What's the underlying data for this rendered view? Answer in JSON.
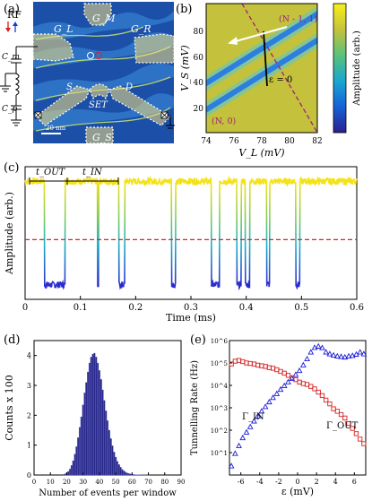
{
  "panels": {
    "a": {
      "label": "(a)",
      "rf_label": "RF",
      "cm_label": "C_m",
      "cp_label": "C_p",
      "gates": [
        "G_L",
        "G_M",
        "G_R",
        "S",
        "SET",
        "D",
        "G_S"
      ],
      "scale_bar": "20 nm",
      "colors": {
        "bg": "#1b4fa8",
        "terrace": "#2f7fd4",
        "highlight": "#d8ec6a",
        "gate": "#f4e486"
      }
    },
    "b": {
      "label": "(b)",
      "xlabel": "V_L (mV)",
      "ylabel": "V_S (mV)",
      "colorbar_label": "Amplitude (arb.)",
      "annot_upper": "(N - 1, 1)",
      "annot_lower": "(N, 0)",
      "annot_eps": "ε = 0",
      "xticks": [
        "74",
        "76",
        "78",
        "80",
        "82"
      ],
      "yticks": [
        "20",
        "40",
        "60",
        "80"
      ]
    },
    "c": {
      "label": "(c)"
    },
    "d": {
      "label": "(d)"
    },
    "e": {
      "label": "(e)"
    }
  },
  "chart_data": [
    {
      "id": "b",
      "type": "heatmap",
      "xlabel": "V_L (mV)",
      "ylabel": "V_S (mV)",
      "xlim": [
        74,
        82
      ],
      "ylim": [
        0,
        100
      ],
      "xticks": [
        74,
        76,
        78,
        80,
        82
      ],
      "yticks": [
        20,
        40,
        60,
        80
      ],
      "colorbar_label": "Amplitude (arb.)",
      "colormap": "parula",
      "annotations": [
        "(N - 1, 1)",
        "(N, 0)",
        "ε = 0"
      ],
      "transition_line": {
        "v_l": [
          77.2,
          80.2
        ],
        "v_s": [
          100,
          0
        ]
      },
      "detuning_axis": {
        "v_l": [
          76.5,
          78.0
        ],
        "v_s": [
          67.5,
          28.0
        ]
      }
    },
    {
      "id": "c",
      "type": "line",
      "xlabel": "Time (ms)",
      "ylabel": "Amplitude (arb.)",
      "xlim": [
        0,
        0.6
      ],
      "ylim": [
        0,
        1
      ],
      "xticks": [
        0,
        0.1,
        0.2,
        0.3,
        0.4,
        0.5,
        0.6
      ],
      "annotations": [
        "t_OUT",
        "t_IN"
      ],
      "high_level": 0.89,
      "low_level": 0.11,
      "threshold": 0.45,
      "low_intervals_ms": [
        [
          0.035,
          0.072
        ],
        [
          0.131,
          0.133
        ],
        [
          0.17,
          0.18
        ],
        [
          0.265,
          0.272
        ],
        [
          0.337,
          0.352
        ],
        [
          0.383,
          0.391
        ],
        [
          0.398,
          0.406
        ],
        [
          0.437,
          0.442
        ],
        [
          0.49,
          0.497
        ]
      ]
    },
    {
      "id": "d",
      "type": "bar",
      "xlabel": "Number of events per window",
      "ylabel": "Counts x 100",
      "xlim": [
        0,
        90
      ],
      "ylim": [
        0,
        4.5
      ],
      "xticks": [
        0,
        10,
        20,
        30,
        40,
        50,
        60,
        70,
        80,
        90
      ],
      "yticks": [
        0,
        1,
        2,
        3,
        4
      ],
      "bin_centers": [
        18,
        19,
        20,
        21,
        22,
        23,
        24,
        25,
        26,
        27,
        28,
        29,
        30,
        31,
        32,
        33,
        34,
        35,
        36,
        37,
        38,
        39,
        40,
        41,
        42,
        43,
        44,
        45,
        46,
        47,
        48,
        49,
        50,
        51,
        52,
        53,
        54,
        55,
        56,
        57,
        58,
        59,
        60,
        61,
        62,
        63,
        64,
        65,
        66,
        67,
        68,
        69,
        70
      ],
      "values": [
        0.02,
        0.04,
        0.07,
        0.12,
        0.2,
        0.32,
        0.48,
        0.7,
        0.95,
        1.25,
        1.6,
        1.95,
        2.35,
        2.75,
        3.1,
        3.45,
        3.75,
        3.95,
        4.05,
        4.08,
        3.95,
        3.75,
        3.5,
        3.2,
        2.85,
        2.5,
        2.15,
        1.82,
        1.5,
        1.22,
        0.98,
        0.77,
        0.6,
        0.46,
        0.35,
        0.26,
        0.19,
        0.14,
        0.1,
        0.07,
        0.05,
        0.035,
        0.025,
        0.018,
        0.012,
        0.008,
        0.006,
        0.004,
        0.003,
        0.002,
        0.0015,
        0.001,
        0.001
      ]
    },
    {
      "id": "e",
      "type": "scatter",
      "xlabel": "ε (mV)",
      "ylabel": "Tunnelling Rate (Hz)",
      "xlim": [
        -7.2,
        7.2
      ],
      "ylim": [
        1,
        1000000
      ],
      "yscale": "log",
      "xticks": [
        -6,
        -4,
        -2,
        0,
        2,
        4,
        6
      ],
      "yticks": [
        "10^1",
        "10^2",
        "10^3",
        "10^4",
        "10^5",
        "10^6"
      ],
      "series": [
        {
          "name": "Γ_IN",
          "marker": "triangle",
          "color": "#1a1ad6",
          "x": [
            -7,
            -6.6,
            -6.2,
            -5.8,
            -5.4,
            -5,
            -4.6,
            -4.2,
            -3.8,
            -3.4,
            -3,
            -2.6,
            -2.2,
            -1.8,
            -1.4,
            -1,
            -0.6,
            -0.2,
            0.2,
            0.6,
            1,
            1.4,
            1.8,
            2.2,
            2.6,
            3,
            3.4,
            3.8,
            4.2,
            4.6,
            5,
            5.4,
            5.8,
            6.2,
            6.6,
            7
          ],
          "y": [
            2.5,
            9,
            20,
            45,
            80,
            140,
            250,
            420,
            700,
            1100,
            1800,
            2800,
            4200,
            6500,
            9500,
            14000,
            20000,
            30000,
            45000,
            80000,
            150000,
            300000,
            480000,
            550000,
            470000,
            300000,
            250000,
            220000,
            200000,
            190000,
            180000,
            200000,
            210000,
            240000,
            300000,
            250000
          ]
        },
        {
          "name": "Γ_OUT",
          "marker": "square",
          "color": "#d62020",
          "x": [
            -7,
            -6.6,
            -6.2,
            -5.8,
            -5.4,
            -5,
            -4.6,
            -4.2,
            -3.8,
            -3.4,
            -3,
            -2.6,
            -2.2,
            -1.8,
            -1.4,
            -1,
            -0.6,
            -0.2,
            0.2,
            0.6,
            1,
            1.4,
            1.8,
            2.2,
            2.6,
            3,
            3.4,
            3.8,
            4.2,
            4.6,
            5,
            5.4,
            5.8,
            6.2,
            6.6,
            7
          ],
          "y": [
            90000,
            120000,
            130000,
            115000,
            100000,
            95000,
            90000,
            80000,
            75000,
            70000,
            62000,
            58000,
            50000,
            42000,
            35000,
            28000,
            22000,
            18000,
            14000,
            12000,
            11000,
            9000,
            7000,
            5000,
            3500,
            2200,
            1500,
            900,
            700,
            500,
            350,
            200,
            120,
            70,
            40,
            25
          ]
        }
      ]
    }
  ]
}
